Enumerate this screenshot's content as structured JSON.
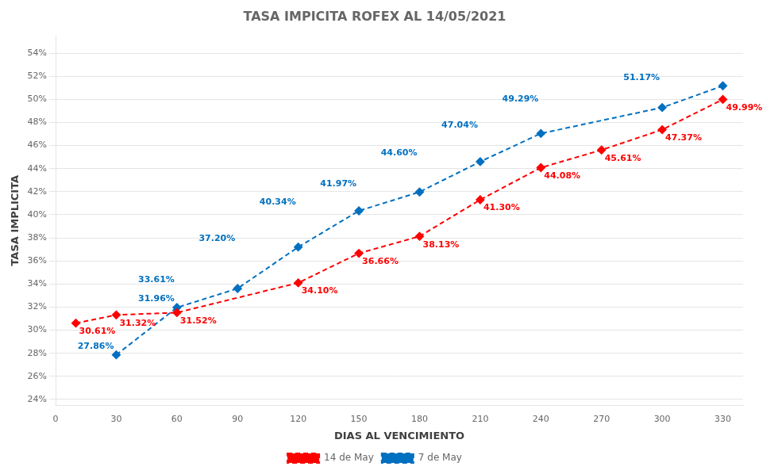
{
  "chart_data": {
    "type": "line",
    "title": "TASA IMPICITA ROFEX AL 14/05/2021",
    "xlabel": "DIAS AL VENCIMIENTO",
    "ylabel": "TASA IMPLICITA",
    "xlim": [
      0,
      340
    ],
    "ylim": [
      0.235,
      0.555
    ],
    "xticks": [
      0,
      30,
      60,
      90,
      120,
      150,
      180,
      210,
      240,
      270,
      300,
      330
    ],
    "yticks": [
      {
        "value": 0.24,
        "label": "24%"
      },
      {
        "value": 0.26,
        "label": "26%"
      },
      {
        "value": 0.28,
        "label": "28%"
      },
      {
        "value": 0.3,
        "label": "30%"
      },
      {
        "value": 0.32,
        "label": "32%"
      },
      {
        "value": 0.34,
        "label": "34%"
      },
      {
        "value": 0.36,
        "label": "36%"
      },
      {
        "value": 0.38,
        "label": "38%"
      },
      {
        "value": 0.4,
        "label": "40%"
      },
      {
        "value": 0.42,
        "label": "42%"
      },
      {
        "value": 0.44,
        "label": "44%"
      },
      {
        "value": 0.46,
        "label": "46%"
      },
      {
        "value": 0.48,
        "label": "48%"
      },
      {
        "value": 0.5,
        "label": "50%"
      },
      {
        "value": 0.52,
        "label": "52%"
      },
      {
        "value": 0.54,
        "label": "54%"
      }
    ],
    "grid": "y",
    "legend": "bottom",
    "series": [
      {
        "name": "14 de May",
        "color": "#FF0000",
        "marker": "diamond",
        "line_style": "dashed",
        "x": [
          10,
          30,
          60,
          120,
          150,
          180,
          210,
          240,
          270,
          300,
          330
        ],
        "values": [
          0.3061,
          0.3132,
          0.3152,
          0.341,
          0.3666,
          0.3813,
          0.413,
          0.4408,
          0.4561,
          0.4737,
          0.4999
        ]
      },
      {
        "name": "7 de May",
        "color": "#0070C0",
        "marker": "diamond",
        "line_style": "dashed",
        "x": [
          30,
          60,
          90,
          120,
          150,
          180,
          210,
          240,
          300,
          330
        ],
        "values": [
          0.2786,
          0.3196,
          0.3361,
          0.372,
          0.4034,
          0.4197,
          0.446,
          0.4704,
          0.4929,
          0.5117
        ]
      }
    ],
    "annotations": [
      {
        "text": "30.61%",
        "x": 10,
        "y": 0.3061,
        "color": "#FF0000"
      },
      {
        "text": "31.32%",
        "x": 30,
        "y": 0.3132,
        "color": "#FF0000"
      },
      {
        "text": "31.52%",
        "x": 60,
        "y": 0.3152,
        "color": "#FF0000"
      },
      {
        "text": "34.10%",
        "x": 120,
        "y": 0.341,
        "color": "#FF0000"
      },
      {
        "text": "36.66%",
        "x": 150,
        "y": 0.3666,
        "color": "#FF0000"
      },
      {
        "text": "38.13%",
        "x": 180,
        "y": 0.3813,
        "color": "#FF0000"
      },
      {
        "text": "41.30%",
        "x": 210,
        "y": 0.413,
        "color": "#FF0000"
      },
      {
        "text": "44.08%",
        "x": 240,
        "y": 0.4408,
        "color": "#FF0000"
      },
      {
        "text": "45.61%",
        "x": 270,
        "y": 0.4561,
        "color": "#FF0000"
      },
      {
        "text": "47.37%",
        "x": 300,
        "y": 0.4737,
        "color": "#FF0000"
      },
      {
        "text": "49.99%",
        "x": 330,
        "y": 0.4999,
        "color": "#FF0000"
      },
      {
        "text": "27.86%",
        "x": 30,
        "y": 0.2786,
        "color": "#0070C0"
      },
      {
        "text": "31.96%",
        "x": 60,
        "y": 0.3196,
        "color": "#0070C0"
      },
      {
        "text": "33.61%",
        "x": 60,
        "y": 0.3361,
        "color": "#0070C0"
      },
      {
        "text": "37.20%",
        "x": 90,
        "y": 0.372,
        "color": "#0070C0"
      },
      {
        "text": "40.34%",
        "x": 120,
        "y": 0.4034,
        "color": "#0070C0"
      },
      {
        "text": "41.97%",
        "x": 150,
        "y": 0.4197,
        "color": "#0070C0"
      },
      {
        "text": "44.60%",
        "x": 180,
        "y": 0.446,
        "color": "#0070C0"
      },
      {
        "text": "47.04%",
        "x": 210,
        "y": 0.4704,
        "color": "#0070C0"
      },
      {
        "text": "49.29%",
        "x": 240,
        "y": 0.4929,
        "color": "#0070C0"
      },
      {
        "text": "51.17%",
        "x": 300,
        "y": 0.5117,
        "color": "#0070C0"
      }
    ]
  }
}
